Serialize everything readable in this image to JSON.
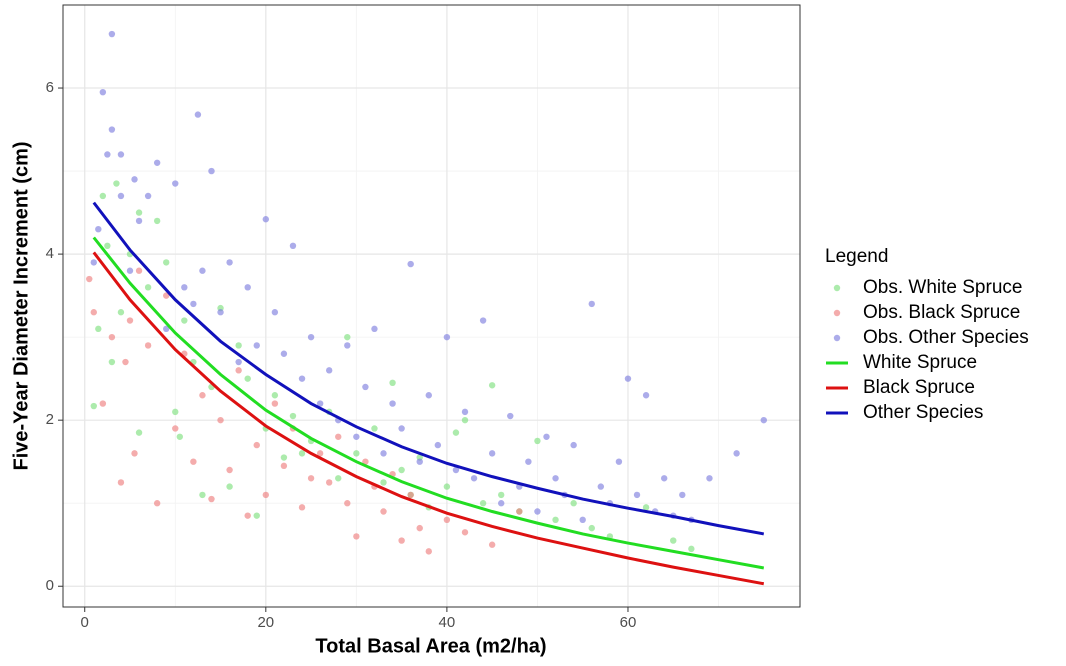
{
  "chart_data": {
    "type": "scatter",
    "xlabel": "Total Basal Area (m2/ha)",
    "ylabel": "Five-Year Diameter Increment (cm)",
    "legend_title": "Legend",
    "legend": "right",
    "grid": true,
    "xlim": [
      -2.4,
      79
    ],
    "ylim": [
      -0.25,
      7.0
    ],
    "xticks": [
      0,
      20,
      40,
      60
    ],
    "yticks": [
      0,
      2,
      4,
      6
    ],
    "xminor": [
      10,
      30,
      50,
      70
    ],
    "yminor": [
      1,
      3,
      5
    ],
    "series": [
      {
        "name": "Obs. White Spruce",
        "type": "scatter",
        "color": "#7fe07f",
        "x": [
          1,
          1.5,
          2,
          2.5,
          3,
          3.5,
          4,
          5,
          6,
          6,
          7,
          8,
          9,
          10,
          10.5,
          11,
          12,
          13,
          14,
          15,
          16,
          17,
          18,
          19,
          20,
          21,
          22,
          23,
          24,
          25,
          27,
          28,
          29,
          30,
          32,
          33,
          34,
          35,
          36,
          37,
          38,
          40,
          41,
          42,
          44,
          45,
          46,
          48,
          50,
          52,
          54,
          56,
          58,
          62,
          65,
          67
        ],
        "values": [
          2.17,
          3.1,
          4.7,
          4.1,
          2.7,
          4.85,
          3.3,
          4.0,
          4.5,
          1.85,
          3.6,
          4.4,
          3.9,
          2.1,
          1.8,
          3.2,
          2.7,
          1.1,
          2.4,
          3.35,
          1.2,
          2.9,
          2.5,
          0.85,
          1.9,
          2.3,
          1.55,
          2.05,
          1.6,
          1.75,
          2.1,
          1.3,
          3.0,
          1.6,
          1.9,
          1.25,
          2.45,
          1.4,
          1.1,
          1.55,
          0.95,
          1.2,
          1.85,
          2.0,
          1.0,
          2.42,
          1.1,
          0.9,
          1.75,
          0.8,
          1.0,
          0.7,
          0.6,
          0.95,
          0.55,
          0.45
        ]
      },
      {
        "name": "Obs. Black Spruce",
        "type": "scatter",
        "color": "#ee8080",
        "x": [
          0.5,
          1,
          2,
          3,
          4,
          4.5,
          5,
          5.5,
          6,
          7,
          8,
          9,
          10,
          11,
          12,
          13,
          14,
          15,
          16,
          17,
          18,
          19,
          20,
          21,
          22,
          23,
          24,
          25,
          26,
          27,
          28,
          29,
          30,
          31,
          32,
          33,
          34,
          35,
          36,
          37,
          38,
          40,
          42,
          45,
          48
        ],
        "values": [
          3.7,
          3.3,
          2.2,
          3.0,
          1.25,
          2.7,
          3.2,
          1.6,
          3.8,
          2.9,
          1.0,
          3.5,
          1.9,
          2.8,
          1.5,
          2.3,
          1.05,
          2.0,
          1.4,
          2.6,
          0.85,
          1.7,
          1.1,
          2.2,
          1.45,
          1.9,
          0.95,
          1.3,
          1.6,
          1.25,
          1.8,
          1.0,
          0.6,
          1.5,
          1.2,
          0.9,
          1.35,
          0.55,
          1.1,
          0.7,
          0.42,
          0.8,
          0.65,
          0.5,
          0.9
        ]
      },
      {
        "name": "Obs. Other Species",
        "type": "scatter",
        "color": "#7f7fdf",
        "x": [
          1,
          1.5,
          2,
          2.5,
          3,
          3,
          4,
          4,
          5,
          5.5,
          6,
          7,
          8,
          9,
          10,
          11,
          12,
          12.5,
          13,
          14,
          15,
          16,
          17,
          18,
          19,
          20,
          21,
          22,
          23,
          24,
          25,
          26,
          27,
          28,
          29,
          30,
          31,
          32,
          33,
          34,
          35,
          36,
          37,
          38,
          39,
          40,
          41,
          42,
          43,
          44,
          45,
          46,
          47,
          48,
          49,
          50,
          51,
          52,
          53,
          54,
          55,
          56,
          57,
          58,
          59,
          60,
          61,
          62,
          63,
          64,
          65,
          66,
          67,
          69,
          72,
          75
        ],
        "values": [
          3.9,
          4.3,
          5.95,
          5.2,
          6.65,
          5.5,
          5.2,
          4.7,
          3.8,
          4.9,
          4.4,
          4.7,
          5.1,
          3.1,
          4.85,
          3.6,
          3.4,
          5.68,
          3.8,
          5.0,
          3.3,
          3.9,
          2.7,
          3.6,
          2.9,
          4.42,
          3.3,
          2.8,
          4.1,
          2.5,
          3.0,
          2.2,
          2.6,
          2.0,
          2.9,
          1.8,
          2.4,
          3.1,
          1.6,
          2.2,
          1.9,
          3.88,
          1.5,
          2.3,
          1.7,
          3.0,
          1.4,
          2.1,
          1.3,
          3.2,
          1.6,
          1.0,
          2.05,
          1.2,
          1.5,
          0.9,
          1.8,
          1.3,
          1.1,
          1.7,
          0.8,
          3.4,
          1.2,
          1.0,
          1.5,
          2.5,
          1.1,
          2.3,
          0.9,
          1.3,
          0.85,
          1.1,
          0.8,
          1.3,
          1.6,
          2.0
        ]
      },
      {
        "name": "White Spruce",
        "type": "line",
        "color": "#22dd22",
        "x": [
          1,
          5,
          10,
          15,
          20,
          25,
          30,
          35,
          40,
          45,
          50,
          55,
          60,
          65,
          70,
          75
        ],
        "values": [
          4.2,
          3.65,
          3.05,
          2.55,
          2.12,
          1.78,
          1.5,
          1.26,
          1.06,
          0.9,
          0.76,
          0.63,
          0.52,
          0.42,
          0.32,
          0.22
        ]
      },
      {
        "name": "Black Spruce",
        "type": "line",
        "color": "#dd1111",
        "x": [
          1,
          5,
          10,
          15,
          20,
          25,
          30,
          35,
          40,
          45,
          50,
          55,
          60,
          65,
          70,
          75
        ],
        "values": [
          4.02,
          3.45,
          2.85,
          2.35,
          1.93,
          1.6,
          1.32,
          1.08,
          0.88,
          0.72,
          0.58,
          0.46,
          0.34,
          0.23,
          0.13,
          0.03
        ]
      },
      {
        "name": "Other Species",
        "type": "line",
        "color": "#1111bb",
        "x": [
          1,
          5,
          10,
          15,
          20,
          25,
          30,
          35,
          40,
          45,
          50,
          55,
          60,
          65,
          70,
          75
        ],
        "values": [
          4.62,
          4.05,
          3.45,
          2.95,
          2.55,
          2.2,
          1.92,
          1.68,
          1.48,
          1.32,
          1.18,
          1.05,
          0.94,
          0.84,
          0.73,
          0.63
        ]
      }
    ]
  }
}
